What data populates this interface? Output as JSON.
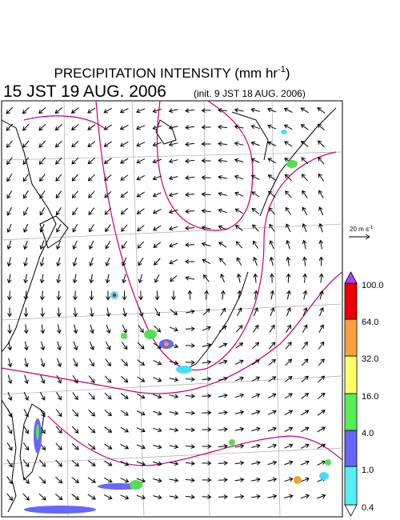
{
  "title": {
    "main": "PRECIPITATION INTENSITY (mm hr",
    "exponent": "-1",
    "close": ")"
  },
  "valid_time": "15 JST 19 AUG. 2006",
  "init_time": "(init. 9 JST 18 AUG. 2006)",
  "wind_scale": {
    "label": "20 m s",
    "exponent": "-1"
  },
  "colorbar": {
    "labels": [
      "0.4",
      "1.0",
      "4.0",
      "16.0",
      "32.0",
      "64.0",
      "100.0"
    ]
  }
}
